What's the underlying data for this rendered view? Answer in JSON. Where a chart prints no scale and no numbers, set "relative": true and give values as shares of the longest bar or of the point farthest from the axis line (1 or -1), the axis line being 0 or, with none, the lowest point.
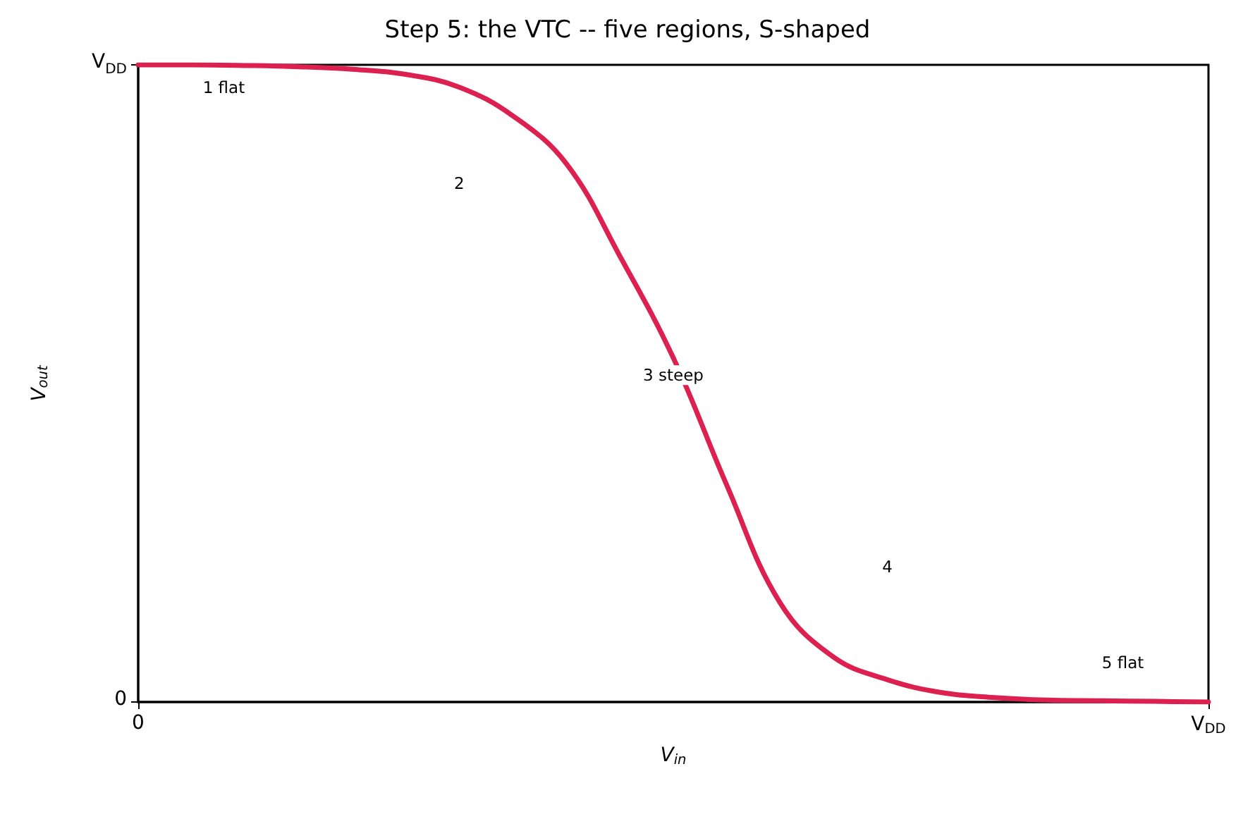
{
  "chart_data": {
    "type": "line",
    "title": "Step 5: the VTC -- five regions, S-shaped",
    "xlabel": "V$_{in}$",
    "ylabel": "V$_{out}$",
    "relative": true,
    "categories": [
      "0",
      null,
      null,
      null,
      null,
      null,
      null,
      null,
      null,
      null,
      null,
      null,
      null,
      null,
      null,
      null,
      null,
      null,
      null,
      null,
      "V$_{DD}$"
    ],
    "grid": false,
    "marker": "none",
    "line_style": "solid",
    "series": [
      {
        "color": "#dc2050",
        "values": [
          1,
          1,
          0.999,
          0.997,
          0.993,
          0.985,
          0.965,
          0.92,
          0.845,
          0.7,
          0.54,
          0.34,
          0.155,
          0.07,
          0.035,
          0.015,
          0.007,
          0.003,
          0.002,
          0.001,
          0
        ]
      }
    ],
    "annotations": [
      "V$_{DD}$",
      "0",
      "1 flat",
      "2",
      "3 steep",
      "4",
      "5 flat"
    ]
  }
}
